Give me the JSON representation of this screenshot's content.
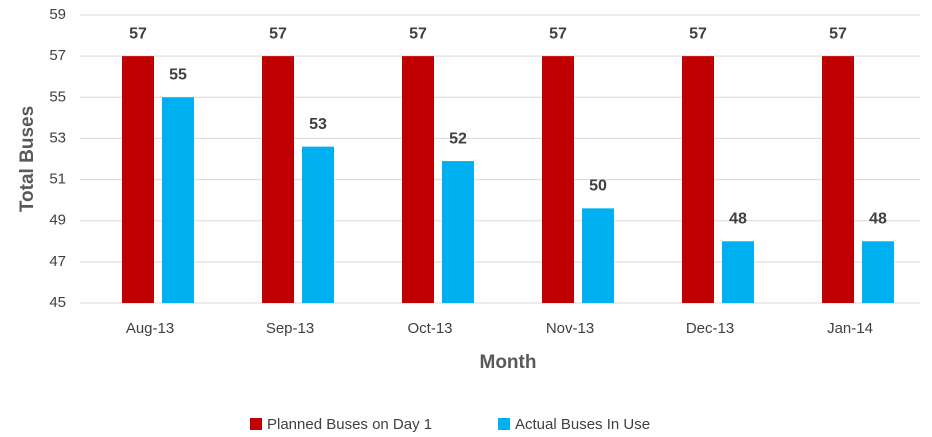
{
  "chart_data": {
    "type": "bar",
    "categories": [
      "Aug-13",
      "Sep-13",
      "Oct-13",
      "Nov-13",
      "Dec-13",
      "Jan-14"
    ],
    "series": [
      {
        "name": "Planned Buses on Day 1",
        "color": "#c00000",
        "values": [
          57,
          57,
          57,
          57,
          57,
          57
        ]
      },
      {
        "name": "Actual Buses In Use",
        "color": "#00b0f0",
        "values": [
          55,
          52.6,
          51.9,
          49.6,
          48,
          48
        ],
        "value_labels": [
          "55",
          "53",
          "52",
          "50",
          "48",
          "48"
        ]
      }
    ],
    "ylim": [
      45,
      59
    ],
    "yticks": [
      45,
      47,
      49,
      51,
      53,
      55,
      57,
      59
    ],
    "grid": true,
    "xlabel": "Month",
    "ylabel": "Total Buses",
    "legend": "bottom"
  }
}
